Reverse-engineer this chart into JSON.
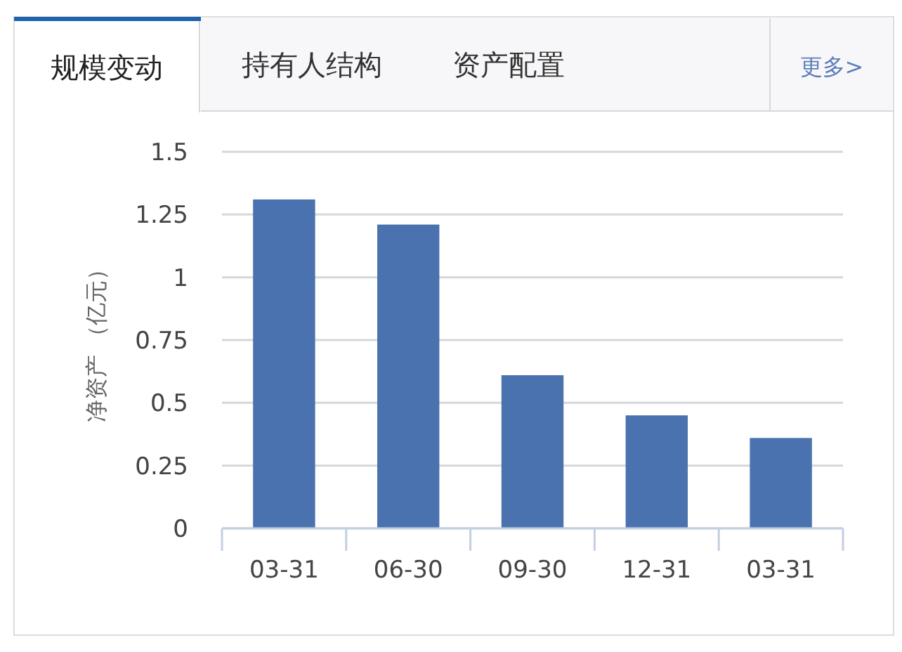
{
  "chart_data": {
    "type": "bar",
    "ylabel": "净资产 （亿元）",
    "categories": [
      "03-31",
      "06-30",
      "09-30",
      "12-31",
      "03-31"
    ],
    "values": [
      1.31,
      1.21,
      0.61,
      0.45,
      0.36
    ],
    "color": "#4a72ae",
    "ylim": [
      0,
      1.5
    ],
    "yticks": [
      0,
      0.25,
      0.5,
      0.75,
      1,
      1.25,
      1.5
    ],
    "grid": "y",
    "annotations": [
      "规模变动",
      "持有人结构",
      "资产配置",
      "更多>"
    ]
  }
}
